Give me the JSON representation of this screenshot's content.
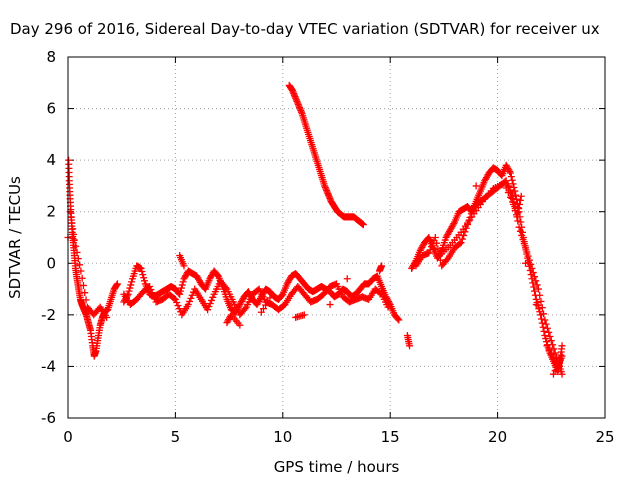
{
  "chart_data": {
    "type": "scatter",
    "title": "Day 296 of 2016, Sidereal Day-to-day VTEC variation (SDTVAR) for receiver ux",
    "xlabel": "GPS time / hours",
    "ylabel": "SDTVAR / TECUs",
    "xlim": [
      0,
      25
    ],
    "ylim": [
      -6,
      8
    ],
    "xticks": [
      0,
      5,
      10,
      15,
      20,
      25
    ],
    "yticks": [
      -6,
      -4,
      -2,
      0,
      2,
      4,
      6,
      8
    ],
    "xtick_labels": [
      "0",
      "5",
      "10",
      "15",
      "20",
      "25"
    ],
    "ytick_labels": [
      "-6",
      "-4",
      "-2",
      "0",
      "2",
      "4",
      "6",
      "8"
    ],
    "grid": true,
    "marker": "+",
    "color": "#ff0000",
    "series": [
      {
        "points": [
          [
            0.0,
            1.0
          ],
          [
            0.03,
            4.0
          ],
          [
            0.06,
            3.2
          ],
          [
            0.1,
            2.5
          ],
          [
            0.15,
            1.8
          ],
          [
            0.2,
            1.2
          ],
          [
            0.25,
            0.8
          ],
          [
            0.3,
            0.3
          ],
          [
            0.35,
            -0.2
          ],
          [
            0.42,
            -0.6
          ],
          [
            0.5,
            -1.0
          ],
          [
            0.58,
            -1.4
          ],
          [
            0.65,
            -1.6
          ],
          [
            0.75,
            -1.8
          ],
          [
            0.85,
            -2.0
          ],
          [
            0.95,
            -2.3
          ],
          [
            1.05,
            -2.6
          ],
          [
            1.15,
            -3.2
          ],
          [
            1.22,
            -3.6
          ],
          [
            1.3,
            -3.4
          ],
          [
            1.4,
            -2.9
          ],
          [
            1.5,
            -2.4
          ],
          [
            1.6,
            -2.1
          ],
          [
            1.7,
            -1.9
          ],
          [
            1.85,
            -1.8
          ],
          [
            2.0,
            -1.4
          ],
          [
            2.15,
            -1.0
          ],
          [
            2.3,
            -0.8
          ],
          [
            0.1,
            2.0
          ],
          [
            0.3,
            0.9
          ],
          [
            0.6,
            -0.3
          ],
          [
            0.9,
            -1.7
          ],
          [
            1.2,
            -2.0
          ],
          [
            1.5,
            -1.7
          ],
          [
            1.8,
            -2.1
          ]
        ]
      },
      {
        "points": [
          [
            2.6,
            -1.5
          ],
          [
            2.8,
            -1.2
          ],
          [
            3.0,
            -0.6
          ],
          [
            3.2,
            -0.1
          ],
          [
            3.4,
            -0.2
          ],
          [
            3.6,
            -0.8
          ],
          [
            3.8,
            -1.2
          ],
          [
            4.0,
            -1.3
          ],
          [
            4.2,
            -1.2
          ],
          [
            4.4,
            -1.1
          ],
          [
            4.6,
            -1.0
          ],
          [
            4.8,
            -0.9
          ],
          [
            5.0,
            -1.0
          ],
          [
            5.2,
            -1.2
          ],
          [
            5.4,
            -0.6
          ],
          [
            5.6,
            -0.3
          ],
          [
            5.8,
            -0.4
          ],
          [
            6.0,
            -0.5
          ],
          [
            6.2,
            -0.8
          ],
          [
            6.4,
            -1.0
          ],
          [
            6.6,
            -0.6
          ],
          [
            6.8,
            -0.3
          ],
          [
            7.0,
            -0.5
          ],
          [
            7.2,
            -0.9
          ],
          [
            7.4,
            -1.4
          ],
          [
            7.6,
            -1.8
          ],
          [
            7.8,
            -1.9
          ],
          [
            8.0,
            -1.6
          ],
          [
            8.2,
            -1.3
          ],
          [
            8.4,
            -1.1
          ],
          [
            8.6,
            -1.4
          ],
          [
            8.8,
            -1.6
          ],
          [
            9.0,
            -1.3
          ],
          [
            9.2,
            -1.0
          ],
          [
            9.4,
            -1.1
          ],
          [
            9.6,
            -1.3
          ],
          [
            9.8,
            -1.4
          ],
          [
            10.0,
            -1.2
          ],
          [
            10.2,
            -0.8
          ],
          [
            10.4,
            -0.5
          ],
          [
            10.6,
            -0.4
          ],
          [
            10.8,
            -0.6
          ],
          [
            11.0,
            -0.8
          ],
          [
            11.2,
            -1.0
          ],
          [
            11.4,
            -1.1
          ],
          [
            11.6,
            -1.0
          ],
          [
            11.8,
            -0.9
          ],
          [
            12.0,
            -1.0
          ],
          [
            12.2,
            -1.1
          ],
          [
            12.4,
            -1.3
          ],
          [
            12.6,
            -1.2
          ],
          [
            12.8,
            -1.0
          ],
          [
            13.0,
            -1.1
          ],
          [
            13.2,
            -1.3
          ],
          [
            13.4,
            -1.2
          ],
          [
            13.6,
            -1.0
          ],
          [
            13.8,
            -0.8
          ],
          [
            14.0,
            -0.8
          ],
          [
            14.2,
            -0.6
          ],
          [
            14.4,
            -0.5
          ],
          [
            14.6,
            -0.9
          ],
          [
            14.8,
            -1.3
          ],
          [
            15.0,
            -1.6
          ],
          [
            15.2,
            -2.0
          ],
          [
            15.4,
            -2.2
          ],
          [
            2.6,
            -1.2
          ],
          [
            2.9,
            -1.6
          ],
          [
            3.2,
            -1.4
          ],
          [
            3.5,
            -1.1
          ],
          [
            3.8,
            -0.9
          ],
          [
            4.1,
            -1.5
          ],
          [
            4.4,
            -1.4
          ],
          [
            4.7,
            -1.2
          ],
          [
            5.0,
            -1.4
          ],
          [
            5.3,
            -2.0
          ],
          [
            5.6,
            -1.6
          ],
          [
            5.9,
            -1.0
          ],
          [
            6.2,
            -1.4
          ],
          [
            6.5,
            -1.8
          ],
          [
            6.8,
            -1.2
          ],
          [
            7.1,
            -0.7
          ],
          [
            7.4,
            -1.0
          ],
          [
            7.7,
            -1.5
          ],
          [
            8.0,
            -2.0
          ],
          [
            8.3,
            -1.7
          ],
          [
            8.6,
            -1.2
          ],
          [
            8.9,
            -1.0
          ],
          [
            9.2,
            -1.5
          ],
          [
            9.5,
            -1.6
          ],
          [
            9.8,
            -1.8
          ],
          [
            10.1,
            -1.6
          ],
          [
            10.4,
            -1.2
          ],
          [
            10.7,
            -0.9
          ],
          [
            11.0,
            -1.2
          ],
          [
            11.3,
            -1.5
          ],
          [
            11.6,
            -1.4
          ],
          [
            11.9,
            -1.2
          ],
          [
            12.2,
            -0.9
          ],
          [
            12.5,
            -0.8
          ],
          [
            12.8,
            -1.3
          ],
          [
            13.1,
            -1.5
          ],
          [
            13.4,
            -1.4
          ],
          [
            13.7,
            -1.3
          ],
          [
            14.0,
            -1.4
          ],
          [
            14.3,
            -1.0
          ],
          [
            14.6,
            -1.2
          ],
          [
            14.9,
            -1.7
          ],
          [
            5.2,
            0.3
          ],
          [
            5.4,
            -0.1
          ],
          [
            7.4,
            -2.3
          ],
          [
            7.6,
            -2.0
          ],
          [
            8.0,
            -2.4
          ],
          [
            9.0,
            -1.9
          ],
          [
            9.5,
            -1.2
          ],
          [
            10.6,
            -2.1
          ],
          [
            11.0,
            -2.0
          ],
          [
            12.2,
            -1.6
          ],
          [
            13.0,
            -0.6
          ],
          [
            14.5,
            -0.3
          ],
          [
            14.6,
            -0.1
          ]
        ]
      },
      {
        "points": [
          [
            10.3,
            6.9
          ],
          [
            10.45,
            6.7
          ],
          [
            10.6,
            6.4
          ],
          [
            10.75,
            6.1
          ],
          [
            10.9,
            5.8
          ],
          [
            11.05,
            5.4
          ],
          [
            11.2,
            5.0
          ],
          [
            11.35,
            4.6
          ],
          [
            11.5,
            4.2
          ],
          [
            11.65,
            3.8
          ],
          [
            11.8,
            3.4
          ],
          [
            11.95,
            3.0
          ],
          [
            12.1,
            2.7
          ],
          [
            12.25,
            2.4
          ],
          [
            12.4,
            2.2
          ],
          [
            12.55,
            2.0
          ],
          [
            12.7,
            1.9
          ],
          [
            12.85,
            1.8
          ],
          [
            13.0,
            1.8
          ],
          [
            13.15,
            1.8
          ],
          [
            13.3,
            1.8
          ],
          [
            13.45,
            1.7
          ],
          [
            13.6,
            1.6
          ],
          [
            13.75,
            1.5
          ]
        ]
      },
      {
        "points": [
          [
            15.8,
            -2.8
          ],
          [
            15.9,
            -3.2
          ],
          [
            16.0,
            -0.2
          ],
          [
            16.2,
            0.1
          ],
          [
            16.4,
            0.5
          ],
          [
            16.6,
            0.8
          ],
          [
            16.8,
            1.0
          ],
          [
            17.0,
            0.6
          ],
          [
            17.2,
            0.2
          ],
          [
            17.4,
            0.5
          ],
          [
            17.6,
            1.0
          ],
          [
            17.8,
            1.3
          ],
          [
            18.0,
            1.6
          ],
          [
            18.2,
            2.0
          ],
          [
            18.4,
            2.1
          ],
          [
            18.6,
            2.2
          ],
          [
            18.8,
            2.0
          ],
          [
            19.0,
            2.4
          ],
          [
            19.2,
            2.8
          ],
          [
            19.4,
            3.2
          ],
          [
            19.6,
            3.5
          ],
          [
            19.8,
            3.7
          ],
          [
            20.0,
            3.6
          ],
          [
            20.2,
            3.4
          ],
          [
            20.4,
            3.8
          ],
          [
            20.6,
            3.5
          ],
          [
            20.8,
            2.8
          ],
          [
            21.0,
            2.0
          ],
          [
            21.2,
            1.0
          ],
          [
            21.4,
            0.2
          ],
          [
            21.6,
            -0.6
          ],
          [
            21.8,
            -1.4
          ],
          [
            22.0,
            -2.0
          ],
          [
            22.2,
            -2.8
          ],
          [
            22.4,
            -3.4
          ],
          [
            22.6,
            -3.8
          ],
          [
            22.8,
            -4.2
          ],
          [
            22.9,
            -3.8
          ],
          [
            23.0,
            -3.2
          ],
          [
            16.2,
            -0.1
          ],
          [
            16.5,
            0.3
          ],
          [
            16.8,
            0.4
          ],
          [
            17.1,
            1.0
          ],
          [
            17.4,
            -0.1
          ],
          [
            17.7,
            0.2
          ],
          [
            18.0,
            0.6
          ],
          [
            18.3,
            0.8
          ],
          [
            18.6,
            1.5
          ],
          [
            18.9,
            2.2
          ],
          [
            19.2,
            2.4
          ],
          [
            19.5,
            2.6
          ],
          [
            19.8,
            2.8
          ],
          [
            20.1,
            3.0
          ],
          [
            20.4,
            3.2
          ],
          [
            20.7,
            2.6
          ],
          [
            21.0,
            1.4
          ],
          [
            21.3,
            0.6
          ],
          [
            21.6,
            -0.2
          ],
          [
            21.9,
            -1.0
          ],
          [
            22.2,
            -2.2
          ],
          [
            22.5,
            -3.0
          ],
          [
            22.8,
            -3.8
          ],
          [
            23.0,
            -4.3
          ],
          [
            17.3,
            0.3
          ],
          [
            17.8,
            0.7
          ],
          [
            18.3,
            1.2
          ],
          [
            18.8,
            1.8
          ],
          [
            19.3,
            2.4
          ],
          [
            19.8,
            2.9
          ],
          [
            20.3,
            3.1
          ],
          [
            20.8,
            2.2
          ],
          [
            21.3,
            0.0
          ],
          [
            21.8,
            -1.6
          ],
          [
            22.3,
            -3.2
          ],
          [
            22.8,
            -4.0
          ],
          [
            23.0,
            -3.6
          ],
          [
            22.6,
            -4.3
          ],
          [
            20.5,
            3.0
          ],
          [
            20.9,
            1.8
          ],
          [
            21.1,
            2.6
          ],
          [
            19.0,
            3.0
          ]
        ]
      }
    ]
  }
}
